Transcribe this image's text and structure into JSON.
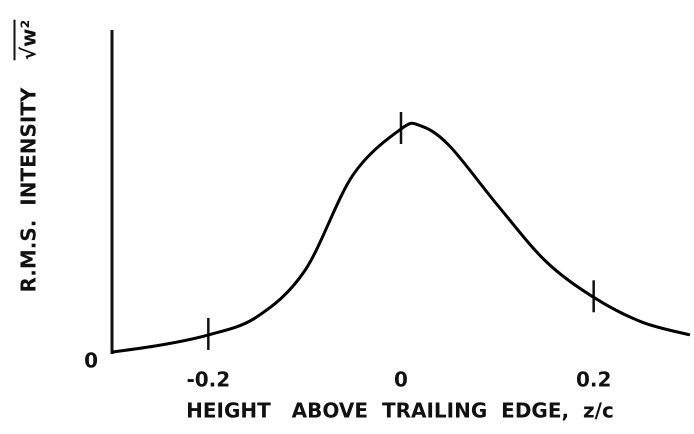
{
  "chart_data": {
    "type": "line",
    "xlabel": "HEIGHT   ABOVE  TRAILING  EDGE,  z/c",
    "ylabel": "R.M.S.  INTENSITY",
    "ylabel_symbol": "√w²",
    "x": [
      -0.3,
      -0.25,
      -0.2,
      -0.15,
      -0.1,
      -0.05,
      0,
      0.02,
      0.05,
      0.1,
      0.15,
      0.2,
      0.25,
      0.3
    ],
    "series": [
      {
        "name": "R.M.S. INTENSITY",
        "color": "#000000",
        "values": [
          0.024,
          0.045,
          0.076,
          0.13,
          0.27,
          0.56,
          0.7,
          0.71,
          0.65,
          0.47,
          0.3,
          0.19,
          0.115,
          0.076
        ]
      }
    ],
    "xlim": [
      -0.3,
      0.3
    ],
    "xticks": [
      -0.2,
      0,
      0.2
    ],
    "ylim": [
      0,
      1
    ],
    "yticks": [
      0
    ]
  }
}
